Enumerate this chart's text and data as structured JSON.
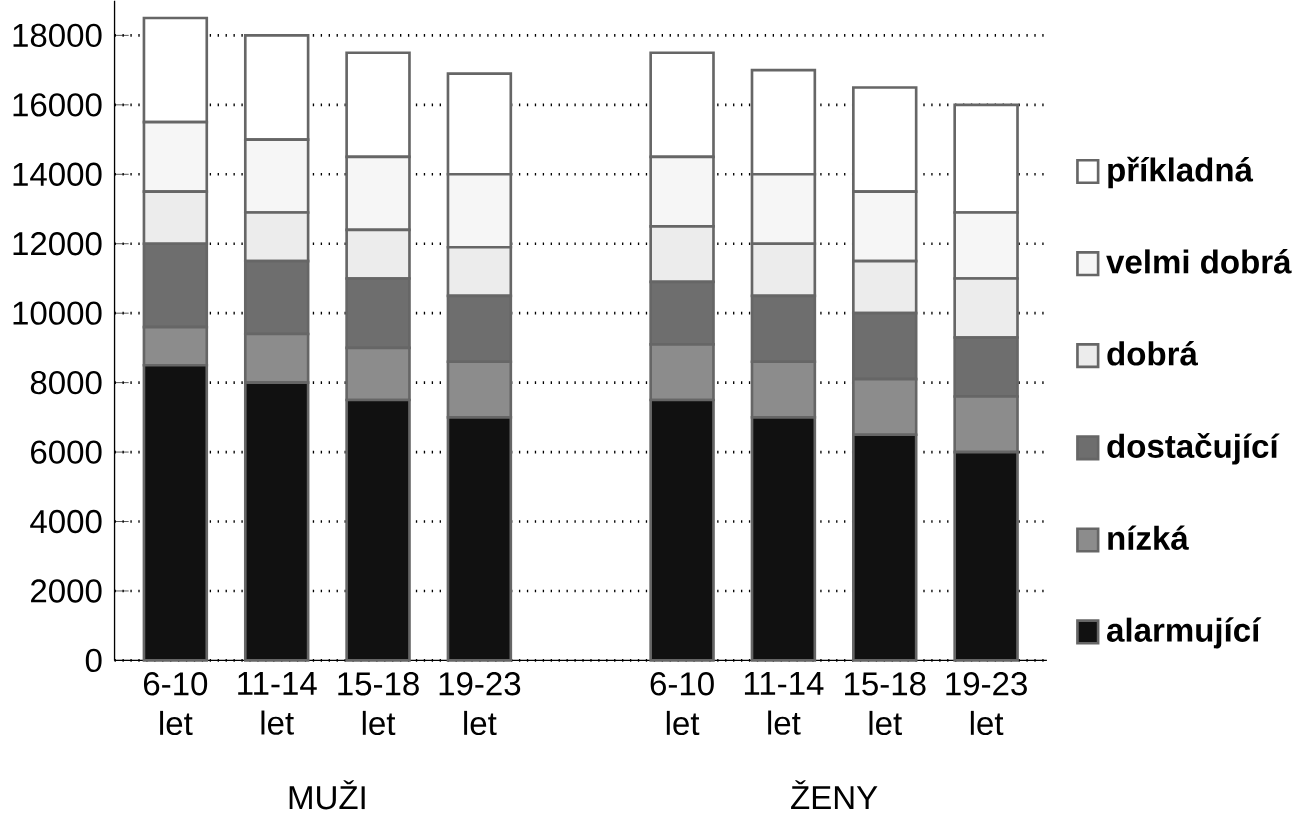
{
  "chart_data": {
    "type": "bar",
    "stacked": true,
    "categories": [
      "6-10 let",
      "11-14 let",
      "15-18 let",
      "19-23 let",
      null,
      "6-10 let",
      "11-14 let",
      "15-18 let",
      "19-23 let"
    ],
    "series": [
      {
        "name": "alarmující",
        "color": "#111111",
        "values": [
          8500,
          8000,
          7500,
          7000,
          null,
          7500,
          7000,
          6500,
          6000
        ]
      },
      {
        "name": "nízká",
        "color": "#8c8c8c",
        "values": [
          1100,
          1400,
          1500,
          1600,
          null,
          1600,
          1600,
          1600,
          1600
        ]
      },
      {
        "name": "dostačující",
        "color": "#6e6e6e",
        "values": [
          2400,
          2100,
          2000,
          1900,
          null,
          1800,
          1900,
          1900,
          1700
        ]
      },
      {
        "name": "dobrá",
        "color": "#ececec",
        "values": [
          1500,
          1400,
          1400,
          1400,
          null,
          1600,
          1500,
          1500,
          1700
        ]
      },
      {
        "name": "velmi dobrá",
        "color": "#f6f6f6",
        "values": [
          2000,
          2100,
          2100,
          2100,
          null,
          2000,
          2000,
          2000,
          1900
        ]
      },
      {
        "name": "příkladná",
        "color": "#ffffff",
        "values": [
          3000,
          3000,
          3000,
          2900,
          null,
          3000,
          3000,
          3000,
          3100
        ]
      }
    ],
    "ylim": [
      0,
      19000
    ],
    "yticks": [
      0,
      2000,
      4000,
      6000,
      8000,
      10000,
      12000,
      14000,
      16000,
      18000
    ],
    "grid": "y",
    "legend": "right",
    "annotations": [
      "MUŽI",
      "ŽENY"
    ]
  }
}
